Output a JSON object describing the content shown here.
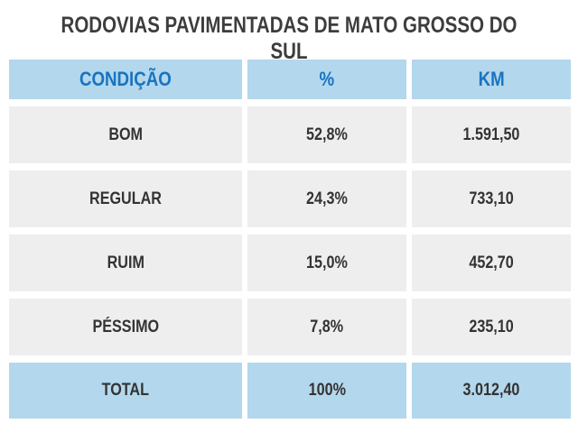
{
  "title": "RODOVIAS PAVIMENTADAS DE MATO GROSSO DO SUL",
  "colors": {
    "header_bg": "#b3d7ec",
    "header_text": "#1874c1",
    "row_bg": "#eeeeee",
    "text": "#333333"
  },
  "chart_data": {
    "type": "table",
    "title": "RODOVIAS PAVIMENTADAS DE MATO GROSSO DO SUL",
    "columns": [
      "CONDIÇÃO",
      "%",
      "KM"
    ],
    "rows": [
      [
        "BOM",
        "52,8%",
        "1.591,50"
      ],
      [
        "REGULAR",
        "24,3%",
        "733,10"
      ],
      [
        "RUIM",
        "15,0%",
        "452,70"
      ],
      [
        "PÉSSIMO",
        "7,8%",
        "235,10"
      ]
    ],
    "total": [
      "TOTAL",
      "100%",
      "3.012,40"
    ]
  }
}
